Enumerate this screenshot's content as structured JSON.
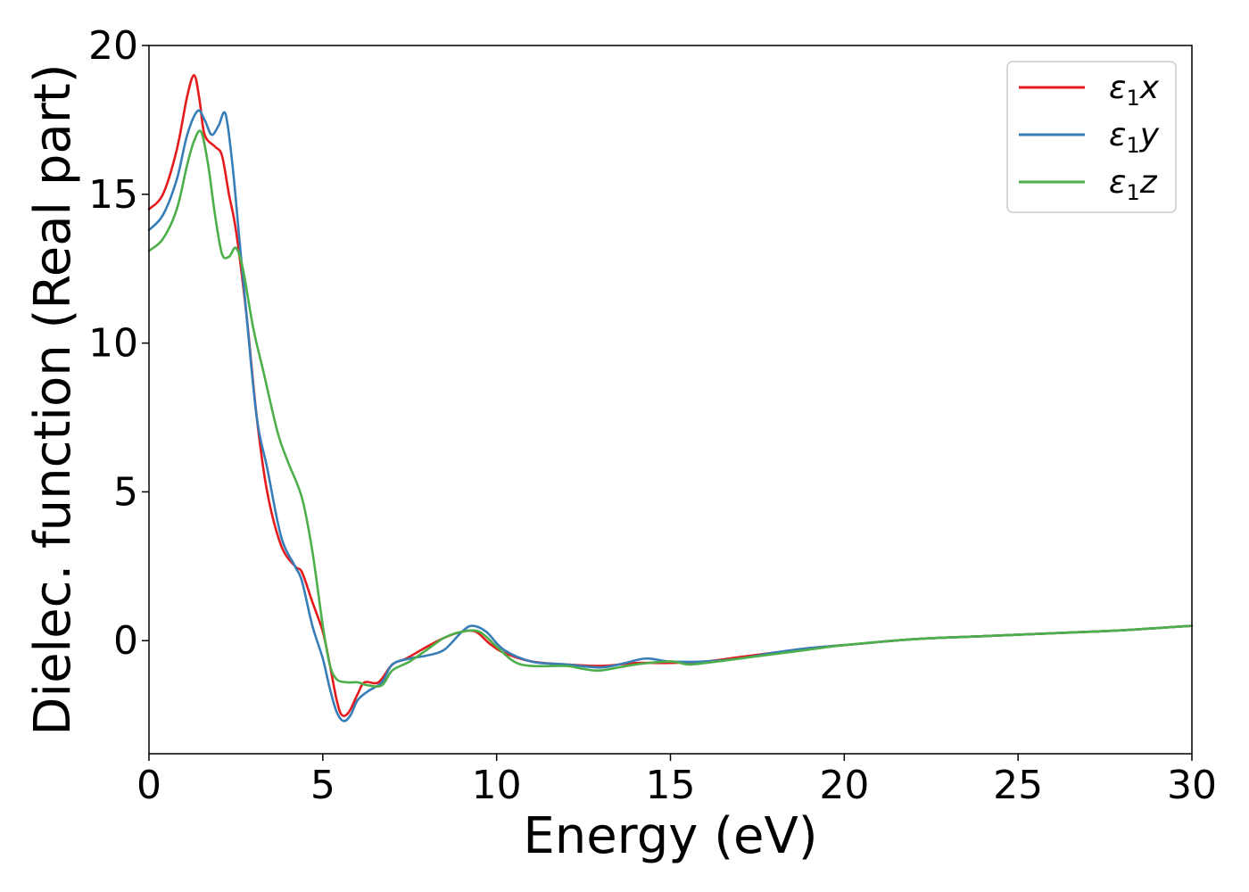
{
  "chart_data": {
    "type": "line",
    "xlabel": "Energy (eV)",
    "ylabel": "Dielec. function (Real part)",
    "xlim": [
      0,
      30
    ],
    "ylim": [
      -3.8,
      20
    ],
    "xticks": [
      0,
      5,
      10,
      15,
      20,
      25,
      30
    ],
    "yticks": [
      0,
      5,
      10,
      15,
      20
    ],
    "grid": false,
    "legend_position": "top-right",
    "series": [
      {
        "name": "ε1x",
        "legend": {
          "symbol": "ε",
          "sub": "1",
          "suffix": "x"
        },
        "color": "#e41a1c",
        "x": [
          0,
          0.4,
          0.8,
          1.1,
          1.3,
          1.45,
          1.6,
          1.9,
          2.1,
          2.3,
          2.5,
          2.8,
          3.1,
          3.4,
          3.8,
          4.2,
          4.4,
          4.7,
          5.0,
          5.2,
          5.4,
          5.55,
          5.75,
          6.0,
          6.2,
          6.6,
          7.0,
          7.4,
          8.0,
          8.5,
          9.0,
          9.4,
          9.8,
          10.2,
          11.0,
          12.0,
          13.0,
          14.0,
          15.0,
          16.0,
          17.0,
          18.0,
          19.0,
          20.0,
          22.0,
          24.0,
          26.0,
          28.0,
          30.0
        ],
        "y": [
          14.5,
          15.0,
          16.5,
          18.3,
          19.0,
          18.2,
          17.0,
          16.6,
          16.3,
          15.0,
          13.8,
          11.0,
          7.5,
          5.0,
          3.2,
          2.5,
          2.3,
          1.3,
          0.3,
          -0.8,
          -2.0,
          -2.5,
          -2.4,
          -1.8,
          -1.4,
          -1.4,
          -0.8,
          -0.6,
          -0.2,
          0.1,
          0.3,
          0.3,
          -0.1,
          -0.4,
          -0.7,
          -0.8,
          -0.85,
          -0.75,
          -0.75,
          -0.7,
          -0.55,
          -0.4,
          -0.25,
          -0.15,
          0.05,
          0.15,
          0.25,
          0.35,
          0.5
        ]
      },
      {
        "name": "ε1y",
        "legend": {
          "symbol": "ε",
          "sub": "1",
          "suffix": "y"
        },
        "color": "#377eb8",
        "x": [
          0,
          0.4,
          0.8,
          1.1,
          1.4,
          1.6,
          1.8,
          2.0,
          2.2,
          2.4,
          2.6,
          2.8,
          3.1,
          3.4,
          3.8,
          4.2,
          4.4,
          4.7,
          5.0,
          5.2,
          5.4,
          5.6,
          5.8,
          6.0,
          6.3,
          6.7,
          7.0,
          7.5,
          8.0,
          8.5,
          9.0,
          9.3,
          9.7,
          10.2,
          11.0,
          12.0,
          13.0,
          13.7,
          14.3,
          15.0,
          16.0,
          17.0,
          18.0,
          19.0,
          20.0,
          22.0,
          24.0,
          26.0,
          28.0,
          30.0
        ],
        "y": [
          13.8,
          14.3,
          15.5,
          17.0,
          17.8,
          17.5,
          17.0,
          17.3,
          17.7,
          16.0,
          13.5,
          11.0,
          7.5,
          5.8,
          3.5,
          2.5,
          2.0,
          0.5,
          -0.6,
          -1.6,
          -2.4,
          -2.7,
          -2.5,
          -2.0,
          -1.7,
          -1.4,
          -0.8,
          -0.6,
          -0.5,
          -0.3,
          0.3,
          0.5,
          0.3,
          -0.3,
          -0.7,
          -0.8,
          -0.9,
          -0.75,
          -0.6,
          -0.7,
          -0.7,
          -0.6,
          -0.4,
          -0.25,
          -0.15,
          0.05,
          0.15,
          0.25,
          0.35,
          0.5
        ]
      },
      {
        "name": "ε1z",
        "legend": {
          "symbol": "ε",
          "sub": "1",
          "suffix": "z"
        },
        "color": "#4daf4a",
        "x": [
          0,
          0.4,
          0.8,
          1.1,
          1.3,
          1.5,
          1.7,
          1.9,
          2.1,
          2.3,
          2.5,
          2.7,
          3.0,
          3.3,
          3.7,
          4.0,
          4.4,
          4.7,
          5.0,
          5.2,
          5.4,
          5.7,
          6.0,
          6.3,
          6.7,
          7.0,
          7.5,
          8.0,
          8.5,
          9.0,
          9.5,
          10.0,
          10.5,
          11.0,
          12.0,
          12.5,
          13.0,
          14.0,
          15.0,
          15.5,
          16.0,
          17.0,
          18.0,
          19.0,
          20.0,
          22.0,
          24.0,
          26.0,
          28.0,
          30.0
        ],
        "y": [
          13.1,
          13.5,
          14.5,
          16.0,
          16.8,
          17.1,
          16.0,
          14.3,
          13.0,
          12.9,
          13.2,
          12.5,
          10.5,
          9.0,
          7.0,
          6.0,
          4.8,
          3.0,
          0.5,
          -0.8,
          -1.3,
          -1.4,
          -1.4,
          -1.5,
          -1.5,
          -1.0,
          -0.7,
          -0.3,
          0.1,
          0.3,
          0.3,
          -0.2,
          -0.7,
          -0.85,
          -0.85,
          -0.95,
          -1.0,
          -0.8,
          -0.7,
          -0.8,
          -0.75,
          -0.6,
          -0.45,
          -0.3,
          -0.15,
          0.05,
          0.15,
          0.25,
          0.35,
          0.5
        ]
      }
    ]
  }
}
